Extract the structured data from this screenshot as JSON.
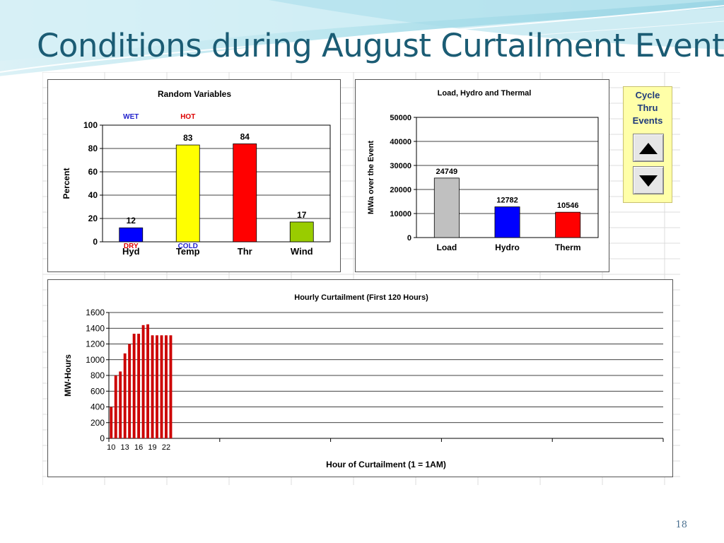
{
  "slide": {
    "title": "Conditions during August Curtailment Event",
    "page_number": "18",
    "accent_color": "#1b5c74"
  },
  "cycle": {
    "label": "Cycle\nThru\nEvents",
    "up_icon": "triangle-up-icon",
    "down_icon": "triangle-down-icon"
  },
  "chart_data": [
    {
      "id": "random-variables",
      "type": "bar",
      "title": "Random Variables",
      "xlabel": "",
      "ylabel": "Percent",
      "ylim": [
        0,
        100
      ],
      "yticks": [
        0,
        20,
        40,
        60,
        80,
        100
      ],
      "categories": [
        "Hyd",
        "Temp",
        "Thr",
        "Wind"
      ],
      "values": [
        12,
        83,
        84,
        17
      ],
      "colors": [
        "#0000ff",
        "#ffff00",
        "#ff0000",
        "#99cc00"
      ],
      "grid": true,
      "annotations": [
        {
          "text": "WET",
          "category": "Hyd",
          "at_value": 100,
          "color": "#2222cc"
        },
        {
          "text": "HOT",
          "category": "Temp",
          "at_value": 100,
          "color": "#dd0000"
        },
        {
          "text": "DRY",
          "category": "Hyd",
          "at_value": 0,
          "color": "#dd0000"
        },
        {
          "text": "COLD",
          "category": "Temp",
          "at_value": 0,
          "color": "#2222cc"
        }
      ]
    },
    {
      "id": "load-hydro-thermal",
      "type": "bar",
      "title": "Load, Hydro and Thermal",
      "xlabel": "",
      "ylabel": "MWa over the Event",
      "ylim": [
        0,
        50000
      ],
      "yticks": [
        0,
        10000,
        20000,
        30000,
        40000,
        50000
      ],
      "categories": [
        "Load",
        "Hydro",
        "Therm"
      ],
      "values": [
        24749,
        12782,
        10546
      ],
      "colors": [
        "#c0c0c0",
        "#0000ff",
        "#ff0000"
      ],
      "grid": true
    },
    {
      "id": "hourly-curtailment",
      "type": "bar",
      "title": "Hourly Curtailment (First 120 Hours)",
      "xlabel": "Hour of Curtailment (1 = 1AM)",
      "ylabel": "MW-Hours",
      "ylim": [
        0,
        1600
      ],
      "yticks": [
        0,
        200,
        400,
        600,
        800,
        1000,
        1200,
        1400,
        1600
      ],
      "xtick_labels": [
        "10",
        "13",
        "16",
        "19",
        "22"
      ],
      "x": [
        10,
        11,
        12,
        13,
        14,
        15,
        16,
        17,
        18,
        19,
        20,
        21,
        22,
        23
      ],
      "values": [
        400,
        800,
        850,
        1080,
        1200,
        1330,
        1330,
        1440,
        1450,
        1310,
        1310,
        1310,
        1310,
        1310
      ],
      "color": "#cc0000",
      "grid": true
    }
  ]
}
